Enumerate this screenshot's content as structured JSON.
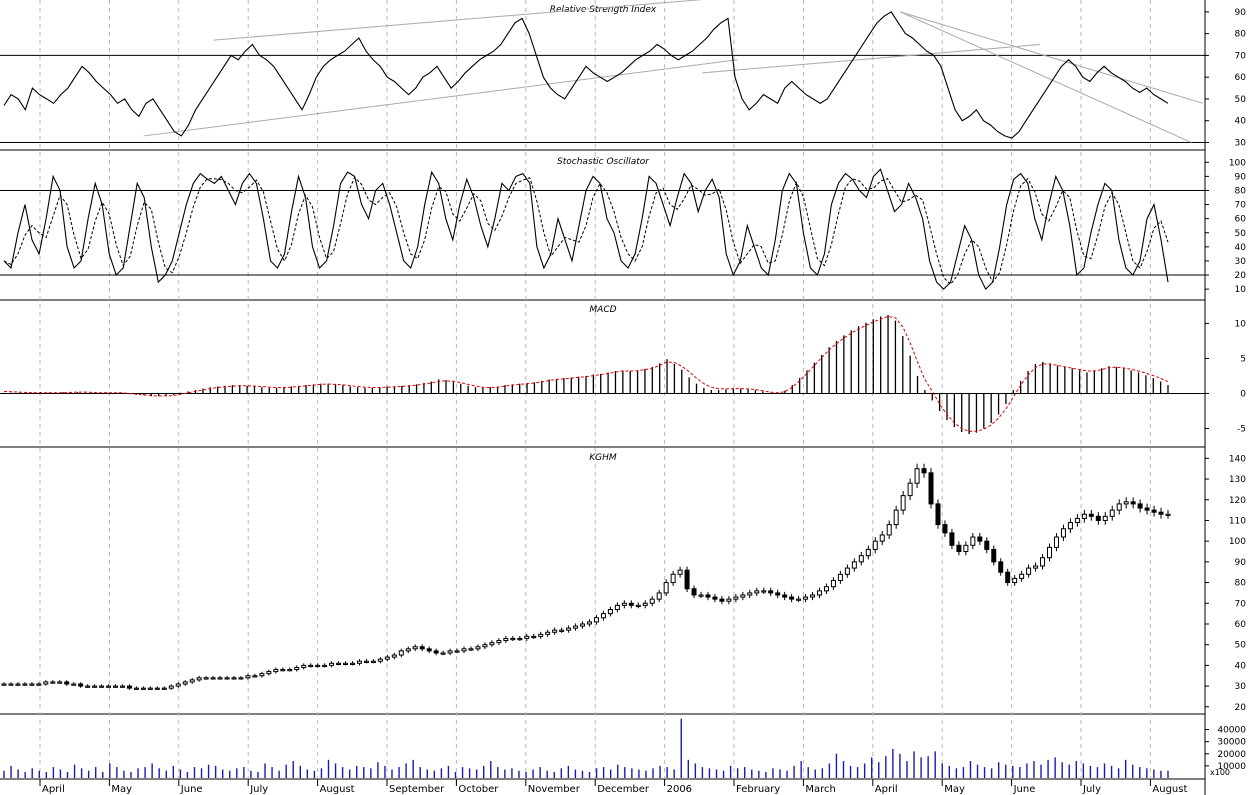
{
  "chart_data": [
    {
      "type": "line",
      "title": "Relative Strength Index",
      "y_ticks": [
        30,
        40,
        50,
        60,
        70,
        80,
        90
      ],
      "ylim": [
        27,
        95
      ],
      "reference_lines": [
        30,
        70
      ],
      "series": [
        {
          "values": [
            47,
            52,
            50,
            45,
            55,
            52,
            50,
            48,
            52,
            55,
            60,
            65,
            62,
            58,
            55,
            52,
            48,
            50,
            45,
            42,
            48,
            50,
            45,
            40,
            35,
            33,
            38,
            45,
            50,
            55,
            60,
            65,
            70,
            68,
            72,
            75,
            70,
            68,
            65,
            60,
            55,
            50,
            45,
            52,
            60,
            65,
            68,
            70,
            72,
            75,
            78,
            72,
            68,
            65,
            60,
            58,
            55,
            52,
            55,
            60,
            62,
            65,
            60,
            55,
            58,
            62,
            65,
            68,
            70,
            72,
            75,
            80,
            85,
            87,
            80,
            70,
            60,
            55,
            52,
            50,
            55,
            60,
            65,
            62,
            60,
            58,
            60,
            62,
            65,
            68,
            70,
            72,
            75,
            73,
            70,
            68,
            70,
            72,
            75,
            78,
            82,
            85,
            87,
            60,
            50,
            45,
            48,
            52,
            50,
            48,
            55,
            58,
            55,
            52,
            50,
            48,
            50,
            55,
            60,
            65,
            70,
            75,
            80,
            85,
            88,
            90,
            85,
            80,
            78,
            75,
            72,
            70,
            65,
            55,
            45,
            40,
            42,
            45,
            40,
            38,
            35,
            33,
            32,
            35,
            40,
            45,
            50,
            55,
            60,
            65,
            68,
            65,
            60,
            58,
            62,
            65,
            62,
            60,
            58,
            55,
            53,
            55,
            52,
            50,
            48
          ]
        }
      ],
      "trendlines": "yes"
    },
    {
      "type": "line",
      "title": "Stochastic Oscillator",
      "y_ticks": [
        10,
        20,
        30,
        40,
        50,
        60,
        70,
        80,
        90,
        100
      ],
      "ylim": [
        3,
        108
      ],
      "reference_lines": [
        20,
        80
      ],
      "series": [
        {
          "values": [
            30,
            25,
            50,
            70,
            45,
            35,
            60,
            90,
            80,
            40,
            25,
            30,
            60,
            85,
            70,
            35,
            20,
            25,
            55,
            85,
            75,
            40,
            15,
            20,
            30,
            50,
            70,
            85,
            92,
            88,
            85,
            90,
            80,
            70,
            85,
            92,
            85,
            60,
            30,
            25,
            35,
            65,
            90,
            75,
            40,
            25,
            30,
            55,
            85,
            93,
            90,
            70,
            60,
            80,
            85,
            70,
            50,
            30,
            25,
            40,
            70,
            93,
            85,
            60,
            45,
            70,
            88,
            75,
            55,
            40,
            60,
            85,
            80,
            90,
            92,
            85,
            40,
            25,
            35,
            60,
            45,
            30,
            55,
            80,
            90,
            85,
            60,
            50,
            30,
            25,
            35,
            60,
            90,
            85,
            70,
            55,
            75,
            92,
            85,
            65,
            80,
            88,
            75,
            35,
            20,
            30,
            55,
            40,
            25,
            20,
            45,
            80,
            92,
            85,
            50,
            25,
            20,
            35,
            70,
            85,
            92,
            88,
            80,
            75,
            90,
            95,
            80,
            65,
            70,
            85,
            75,
            60,
            30,
            15,
            10,
            15,
            35,
            55,
            45,
            20,
            10,
            15,
            40,
            70,
            88,
            92,
            85,
            60,
            45,
            70,
            90,
            80,
            55,
            20,
            25,
            50,
            70,
            85,
            80,
            45,
            25,
            20,
            30,
            60,
            70,
            45,
            15
          ]
        }
      ]
    },
    {
      "type": "bar",
      "title": "MACD",
      "y_ticks": [
        -5,
        0,
        5,
        10
      ],
      "ylim": [
        -7.5,
        13.2
      ],
      "series": [
        {
          "values": [
            0.1,
            0.1,
            0.1,
            0.1,
            0.1,
            0.2,
            0.1,
            0.1,
            0.2,
            0.2,
            0.2,
            0.1,
            0.1,
            0.1,
            0.1,
            0.1,
            0.1,
            -0.1,
            -0.2,
            -0.3,
            -0.4,
            -0.4,
            -0.3,
            -0.2,
            0.1,
            0.3,
            0.5,
            0.7,
            0.9,
            1.0,
            1.1,
            1.2,
            1.2,
            1.1,
            1.0,
            0.9,
            0.8,
            0.8,
            0.9,
            1.0,
            1.1,
            1.2,
            1.3,
            1.4,
            1.4,
            1.3,
            1.2,
            1.0,
            0.9,
            0.8,
            0.8,
            0.9,
            1.0,
            1.0,
            1.1,
            1.2,
            1.3,
            1.5,
            1.7,
            2.0,
            1.9,
            1.7,
            1.4,
            1.1,
            0.9,
            0.8,
            0.9,
            1.0,
            1.2,
            1.3,
            1.4,
            1.5,
            1.6,
            1.8,
            2.0,
            2.1,
            2.2,
            2.3,
            2.4,
            2.5,
            2.7,
            2.8,
            3.0,
            3.2,
            3.3,
            3.2,
            3.3,
            3.5,
            3.8,
            4.3,
            4.9,
            4.2,
            3.4,
            2.3,
            1.4,
            0.8,
            0.5,
            0.5,
            0.6,
            0.7,
            0.7,
            0.6,
            0.5,
            0.3,
            0.1,
            0.1,
            0.4,
            1.2,
            2.2,
            3.3,
            4.4,
            5.5,
            6.6,
            7.5,
            8.3,
            9.0,
            9.6,
            10.1,
            10.6,
            11.0,
            11.2,
            10.4,
            8.2,
            5.4,
            2.5,
            0.5,
            -1.0,
            -2.5,
            -3.8,
            -4.8,
            -5.5,
            -5.8,
            -5.6,
            -5.0,
            -4.2,
            -3.0,
            -1.5,
            0.5,
            1.8,
            3.2,
            4.2,
            4.5,
            4.3,
            4.0,
            3.8,
            3.6,
            3.3,
            3.0,
            3.3,
            3.6,
            3.9,
            3.8,
            3.6,
            3.3,
            3.0,
            2.6,
            2.2,
            1.7,
            1.2
          ]
        },
        {
          "values": [
            0.3,
            0.25,
            0.2,
            0.15,
            0.1,
            0.1,
            0.1,
            0.1,
            0.1,
            0.15,
            0.2,
            0.2,
            0.15,
            0.1,
            0.1,
            0.1,
            0.1,
            0.0,
            -0.1,
            -0.2,
            -0.3,
            -0.35,
            -0.35,
            -0.3,
            -0.1,
            0.1,
            0.3,
            0.5,
            0.7,
            0.85,
            0.95,
            1.05,
            1.1,
            1.1,
            1.05,
            1.0,
            0.9,
            0.85,
            0.85,
            0.9,
            1.0,
            1.1,
            1.2,
            1.3,
            1.35,
            1.3,
            1.25,
            1.1,
            1.0,
            0.9,
            0.85,
            0.85,
            0.9,
            0.95,
            1.0,
            1.1,
            1.2,
            1.35,
            1.5,
            1.75,
            1.8,
            1.75,
            1.55,
            1.3,
            1.05,
            0.9,
            0.85,
            0.9,
            1.05,
            1.2,
            1.3,
            1.4,
            1.5,
            1.65,
            1.85,
            2.0,
            2.1,
            2.2,
            2.3,
            2.4,
            2.55,
            2.7,
            2.85,
            3.05,
            3.2,
            3.2,
            3.25,
            3.4,
            3.6,
            4.0,
            4.5,
            4.4,
            3.9,
            3.1,
            2.2,
            1.4,
            0.9,
            0.7,
            0.65,
            0.7,
            0.7,
            0.65,
            0.55,
            0.4,
            0.2,
            0.1,
            0.25,
            0.9,
            1.8,
            2.9,
            4.0,
            5.1,
            6.2,
            7.1,
            7.9,
            8.6,
            9.2,
            9.7,
            10.2,
            10.6,
            11.0,
            10.8,
            9.5,
            7.2,
            4.5,
            2.0,
            0.3,
            -1.5,
            -3.0,
            -4.2,
            -5.0,
            -5.4,
            -5.4,
            -5.1,
            -4.5,
            -3.5,
            -2.2,
            -0.5,
            1.2,
            2.6,
            3.7,
            4.2,
            4.2,
            4.0,
            3.8,
            3.6,
            3.4,
            3.2,
            3.2,
            3.4,
            3.7,
            3.75,
            3.65,
            3.45,
            3.2,
            2.9,
            2.55,
            2.15,
            1.7
          ]
        }
      ]
    },
    {
      "type": "candlestick",
      "title": "KGHM",
      "y_ticks": [
        20,
        30,
        40,
        50,
        60,
        70,
        80,
        90,
        100,
        110,
        120,
        130,
        140
      ],
      "ylim": [
        17,
        145
      ],
      "x_ticks": [
        "April",
        "May",
        "June",
        "July",
        "August",
        "September",
        "October",
        "November",
        "December",
        "2006",
        "February",
        "March",
        "April",
        "May",
        "June",
        "July",
        "August"
      ],
      "series": [
        {
          "name": "KGHM",
          "values": [
            31,
            31,
            31,
            31,
            31,
            31,
            32,
            32,
            32,
            31,
            31,
            30,
            30,
            30,
            30,
            30,
            30,
            30,
            29,
            29,
            29,
            29,
            29,
            29,
            30,
            31,
            32,
            33,
            34,
            34,
            34,
            34,
            34,
            34,
            34,
            35,
            35,
            36,
            37,
            38,
            38,
            38,
            39,
            40,
            40,
            40,
            40,
            41,
            41,
            41,
            41,
            42,
            42,
            42,
            43,
            44,
            45,
            47,
            48,
            49,
            48,
            47,
            46,
            46,
            47,
            47,
            48,
            48,
            49,
            50,
            51,
            52,
            53,
            53,
            53,
            54,
            54,
            55,
            56,
            57,
            57,
            58,
            59,
            60,
            61,
            63,
            65,
            67,
            69,
            70,
            69,
            69,
            70,
            72,
            75,
            80,
            84,
            86,
            77,
            74,
            74,
            73,
            72,
            71,
            72,
            73,
            74,
            75,
            76,
            76,
            75,
            74,
            73,
            72,
            72,
            73,
            74,
            76,
            78,
            81,
            84,
            87,
            90,
            93,
            96,
            100,
            103,
            108,
            115,
            122,
            128,
            135,
            133,
            118,
            108,
            104,
            98,
            95,
            98,
            102,
            100,
            96,
            90,
            85,
            80,
            82,
            84,
            87,
            88,
            92,
            97,
            102,
            106,
            109,
            111,
            113,
            112,
            110,
            112,
            115,
            118,
            119,
            118,
            116,
            115,
            114,
            113,
            113
          ]
        }
      ]
    },
    {
      "type": "bar",
      "title": "",
      "y_ticks": [
        10000,
        20000,
        30000,
        40000
      ],
      "y_tick_labels": [
        "10000",
        "20000",
        "30000",
        "40000"
      ],
      "unit_label": "x100",
      "ylim": [
        0,
        52000
      ],
      "series": [
        {
          "values": [
            6000,
            10000,
            7000,
            5000,
            8000,
            6000,
            5000,
            9000,
            7000,
            5000,
            11000,
            8000,
            6000,
            9000,
            5000,
            12000,
            9000,
            6000,
            5000,
            8000,
            9000,
            12000,
            8000,
            6000,
            10000,
            7000,
            5000,
            9000,
            8000,
            11000,
            10000,
            7000,
            6000,
            8000,
            9000,
            6000,
            5000,
            12000,
            9000,
            6000,
            11000,
            14000,
            10000,
            7000,
            6000,
            8000,
            15000,
            12000,
            9000,
            7000,
            10000,
            9000,
            8000,
            13000,
            10000,
            7000,
            9000,
            12000,
            15000,
            9000,
            7000,
            6000,
            8000,
            10000,
            5000,
            9000,
            8000,
            7000,
            10000,
            14000,
            9000,
            7000,
            8000,
            6000,
            5000,
            7000,
            9000,
            6000,
            5000,
            8000,
            10000,
            7000,
            6000,
            5000,
            8000,
            9000,
            7000,
            11000,
            9000,
            8000,
            7000,
            6000,
            8000,
            10000,
            9000,
            7000,
            49000,
            15000,
            12000,
            9000,
            8000,
            7000,
            6000,
            10000,
            8000,
            9000,
            7000,
            6000,
            5000,
            8000,
            7000,
            6000,
            10000,
            14000,
            9000,
            7000,
            8000,
            12000,
            20000,
            14000,
            10000,
            9000,
            12000,
            17000,
            13000,
            18000,
            24000,
            20000,
            14000,
            22000,
            17000,
            18000,
            22000,
            12000,
            10000,
            8000,
            9000,
            14000,
            11000,
            9000,
            8000,
            13000,
            11000,
            10000,
            9000,
            12000,
            14000,
            11000,
            15000,
            17000,
            13000,
            11000,
            14000,
            12000,
            10000,
            9000,
            12000,
            10000,
            8000,
            15000,
            11000,
            9000,
            8000,
            7000,
            6000,
            6000
          ]
        }
      ]
    }
  ]
}
